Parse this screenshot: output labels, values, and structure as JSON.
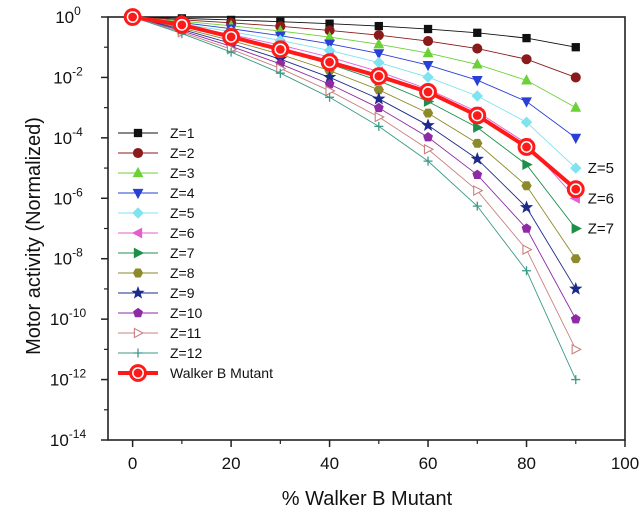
{
  "chart_data": {
    "type": "line",
    "xlabel": "% Walker B Mutant",
    "ylabel": "Motor activity (Normalized)",
    "xlim": [
      -5,
      100
    ],
    "ylim": [
      1e-14,
      1
    ],
    "yscale": "log",
    "x_ticks": [
      0,
      20,
      40,
      60,
      80,
      100
    ],
    "y_ticks": [
      {
        "exp": 0,
        "base": "10",
        "sup": "0"
      },
      {
        "exp": -2,
        "base": "10",
        "sup": "-2"
      },
      {
        "exp": -4,
        "base": "10",
        "sup": "-4"
      },
      {
        "exp": -6,
        "base": "10",
        "sup": "-6"
      },
      {
        "exp": -8,
        "base": "10",
        "sup": "-8"
      },
      {
        "exp": -10,
        "base": "10",
        "sup": "-10"
      },
      {
        "exp": -12,
        "base": "10",
        "sup": "-12"
      },
      {
        "exp": -14,
        "base": "10",
        "sup": "-14"
      }
    ],
    "x": [
      0,
      10,
      20,
      30,
      40,
      50,
      60,
      70,
      80,
      90
    ],
    "series": [
      {
        "name": "Z=1",
        "marker": "square",
        "color": "#111111",
        "filled": true,
        "values": [
          1,
          0.9,
          0.8,
          0.7,
          0.6,
          0.5,
          0.4,
          0.3,
          0.2,
          0.1
        ]
      },
      {
        "name": "Z=2",
        "marker": "circle",
        "color": "#8b1a1a",
        "filled": true,
        "values": [
          1,
          0.81,
          0.64,
          0.49,
          0.36,
          0.25,
          0.16,
          0.09,
          0.04,
          0.01
        ]
      },
      {
        "name": "Z=3",
        "marker": "triangle-up",
        "color": "#6bd136",
        "filled": true,
        "values": [
          1,
          0.729,
          0.512,
          0.343,
          0.216,
          0.125,
          0.064,
          0.027,
          0.008,
          0.001
        ]
      },
      {
        "name": "Z=4",
        "marker": "triangle-down",
        "color": "#2a3fd6",
        "filled": true,
        "values": [
          1,
          0.656,
          0.41,
          0.24,
          0.13,
          0.0625,
          0.0256,
          0.0081,
          0.0016,
          0.0001
        ]
      },
      {
        "name": "Z=5",
        "marker": "diamond",
        "color": "#7fe3f0",
        "filled": true,
        "values": [
          1,
          0.59,
          0.328,
          0.168,
          0.078,
          0.031,
          0.0102,
          0.00243,
          0.00033,
          1e-05
        ]
      },
      {
        "name": "Z=6",
        "marker": "triangle-left",
        "color": "#e35fd0",
        "filled": true,
        "values": [
          1,
          0.531,
          0.262,
          0.118,
          0.047,
          0.0156,
          0.0041,
          0.00073,
          6.6e-05,
          1e-06
        ]
      },
      {
        "name": "Z=7",
        "marker": "triangle-right",
        "color": "#1c8f4a",
        "filled": true,
        "values": [
          1,
          0.478,
          0.21,
          0.082,
          0.028,
          0.0078,
          0.0016,
          0.00022,
          1.3e-05,
          1e-07
        ]
      },
      {
        "name": "Z=8",
        "marker": "hexagon",
        "color": "#8c8a2a",
        "filled": true,
        "values": [
          1,
          0.43,
          0.168,
          0.058,
          0.0168,
          0.0039,
          0.00066,
          6.6e-05,
          2.6e-06,
          1e-08
        ]
      },
      {
        "name": "Z=9",
        "marker": "star",
        "color": "#1e2a8a",
        "filled": true,
        "values": [
          1,
          0.387,
          0.134,
          0.04,
          0.0101,
          0.00195,
          0.00026,
          2e-05,
          5e-07,
          1e-09
        ]
      },
      {
        "name": "Z=10",
        "marker": "pentagon",
        "color": "#8e2aa6",
        "filled": true,
        "values": [
          1,
          0.349,
          0.107,
          0.028,
          0.006,
          0.00098,
          0.000105,
          6e-06,
          1e-07,
          1e-10
        ]
      },
      {
        "name": "Z=11",
        "marker": "triangle-right-open",
        "color": "#c98080",
        "filled": false,
        "values": [
          1,
          0.314,
          0.086,
          0.0198,
          0.0036,
          0.00049,
          4.2e-05,
          1.8e-06,
          2e-08,
          1e-11
        ]
      },
      {
        "name": "Z=12",
        "marker": "plus",
        "color": "#3a9a86",
        "filled": false,
        "values": [
          1,
          0.282,
          0.069,
          0.0138,
          0.0022,
          0.00024,
          1.7e-05,
          5.5e-07,
          4e-09,
          1e-12
        ]
      },
      {
        "name": "Walker B Mutant",
        "marker": "circle-large",
        "color": "#ff1a1a",
        "filled": true,
        "bold": true,
        "values": [
          1,
          0.55,
          0.22,
          0.085,
          0.032,
          0.011,
          0.0033,
          0.00055,
          5e-05,
          2e-06
        ]
      }
    ],
    "annotations": [
      {
        "text": "Z=5",
        "series": "Z=5"
      },
      {
        "text": "Z=6",
        "series": "Z=6"
      },
      {
        "text": "Z=7",
        "series": "Z=7"
      }
    ],
    "legend": "left-middle",
    "grid": false
  }
}
